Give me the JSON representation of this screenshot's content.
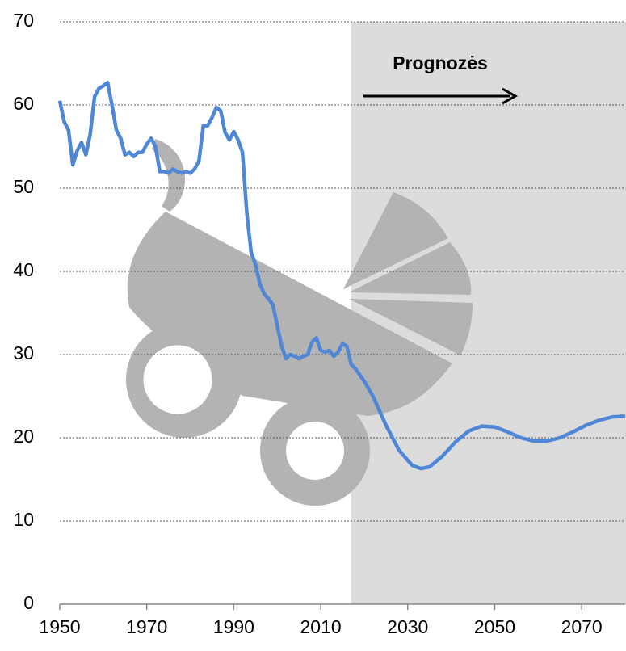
{
  "chart_data": {
    "type": "line",
    "annotation": "Prognozės",
    "forecast_start": 2017,
    "xlim": [
      1950,
      2080
    ],
    "xticks": [
      1950,
      1970,
      1990,
      2010,
      2030,
      2050,
      2070
    ],
    "ylim": [
      0,
      70
    ],
    "yticks": [
      0,
      10,
      20,
      30,
      40,
      50,
      60,
      70
    ],
    "grid": true,
    "x": [
      1950,
      1951,
      1952,
      1953,
      1954,
      1955,
      1956,
      1957,
      1958,
      1959,
      1960,
      1961,
      1962,
      1963,
      1964,
      1965,
      1966,
      1967,
      1968,
      1969,
      1970,
      1971,
      1972,
      1973,
      1974,
      1975,
      1976,
      1977,
      1978,
      1979,
      1980,
      1981,
      1982,
      1983,
      1984,
      1985,
      1986,
      1987,
      1988,
      1989,
      1990,
      1991,
      1992,
      1993,
      1994,
      1995,
      1996,
      1997,
      1998,
      1999,
      2000,
      2001,
      2002,
      2003,
      2004,
      2005,
      2006,
      2007,
      2008,
      2009,
      2010,
      2011,
      2012,
      2013,
      2014,
      2015,
      2016,
      2017,
      2018,
      2020,
      2022,
      2025,
      2028,
      2031,
      2033,
      2035,
      2038,
      2041,
      2044,
      2047,
      2050,
      2053,
      2056,
      2059,
      2062,
      2065,
      2068,
      2071,
      2074,
      2077,
      2080
    ],
    "series": [
      {
        "color": "#4f87d6",
        "values": [
          60.5,
          58,
          57,
          52.8,
          54.5,
          55.5,
          54,
          56.5,
          61,
          62,
          62.3,
          62.7,
          60,
          57,
          56,
          54,
          54.3,
          53.8,
          54.3,
          54.3,
          55.3,
          56,
          55,
          52,
          52,
          51.8,
          52.3,
          52,
          51.8,
          52,
          51.8,
          52.3,
          53.3,
          57.5,
          57.5,
          58.5,
          59.7,
          59.3,
          56.7,
          55.8,
          56.8,
          55.8,
          54.3,
          47,
          42.3,
          40.8,
          38.5,
          37.3,
          36.7,
          36,
          33.5,
          31,
          29.5,
          30,
          29.8,
          29.5,
          29.8,
          30,
          31.5,
          32,
          30.5,
          30.3,
          30.5,
          29.8,
          30.3,
          31.3,
          31,
          28.8,
          28.3,
          26.8,
          25,
          21.5,
          18.5,
          16.7,
          16.3,
          16.5,
          17.8,
          19.5,
          20.8,
          21.4,
          21.3,
          20.7,
          20,
          19.6,
          19.6,
          20,
          20.7,
          21.5,
          22.1,
          22.5,
          22.6
        ]
      }
    ]
  }
}
